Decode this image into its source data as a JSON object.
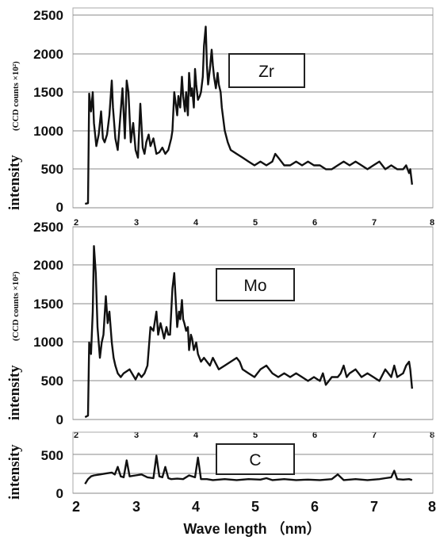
{
  "chart_data": [
    {
      "type": "line",
      "legend": "Zr",
      "ylabel": "intensity",
      "ylabel_unit": "(CCD counts  ×10²)",
      "xlim": [
        2,
        8
      ],
      "ylim": [
        0,
        2500
      ],
      "yticks": [
        "0",
        "500",
        "1000",
        "1500",
        "2000",
        "2500"
      ],
      "xticks": [
        "2",
        "3",
        "4",
        "5",
        "6",
        "7",
        "8"
      ],
      "grid": "horizontal",
      "series": [
        {
          "color": "#111111",
          "x": [
            2.15,
            2.2,
            2.22,
            2.25,
            2.28,
            2.3,
            2.34,
            2.38,
            2.42,
            2.45,
            2.48,
            2.52,
            2.56,
            2.6,
            2.62,
            2.66,
            2.7,
            2.74,
            2.78,
            2.82,
            2.85,
            2.88,
            2.92,
            2.96,
            3.0,
            3.04,
            3.08,
            3.12,
            3.15,
            3.18,
            3.22,
            3.25,
            3.3,
            3.35,
            3.4,
            3.45,
            3.5,
            3.55,
            3.6,
            3.62,
            3.65,
            3.7,
            3.72,
            3.75,
            3.78,
            3.8,
            3.83,
            3.85,
            3.88,
            3.9,
            3.93,
            3.95,
            3.98,
            4.0,
            4.02,
            4.05,
            4.08,
            4.1,
            4.13,
            4.15,
            4.18,
            4.2,
            4.22,
            4.25,
            4.28,
            4.3,
            4.32,
            4.35,
            4.38,
            4.4,
            4.43,
            4.45,
            4.5,
            4.55,
            4.6,
            4.7,
            4.8,
            4.9,
            5.0,
            5.1,
            5.2,
            5.3,
            5.35,
            5.4,
            5.45,
            5.5,
            5.6,
            5.7,
            5.8,
            5.9,
            6.0,
            6.1,
            6.2,
            6.3,
            6.4,
            6.5,
            6.6,
            6.7,
            6.8,
            6.9,
            7.0,
            7.1,
            7.2,
            7.3,
            7.4,
            7.5,
            7.55,
            7.6,
            7.62,
            7.65
          ],
          "y": [
            50,
            60,
            1480,
            1250,
            1500,
            1100,
            800,
            950,
            1250,
            900,
            850,
            950,
            1200,
            1650,
            1300,
            900,
            750,
            1150,
            1550,
            900,
            1650,
            1500,
            850,
            1100,
            750,
            650,
            1350,
            780,
            700,
            850,
            950,
            800,
            900,
            700,
            720,
            780,
            700,
            750,
            900,
            1000,
            1500,
            1200,
            1450,
            1300,
            1700,
            1450,
            1250,
            1500,
            1200,
            1750,
            1450,
            1550,
            1300,
            1800,
            1600,
            1400,
            1450,
            1500,
            1700,
            2100,
            2350,
            1850,
            1600,
            1800,
            2050,
            1850,
            1700,
            1550,
            1750,
            1600,
            1500,
            1300,
            1000,
            850,
            750,
            700,
            650,
            600,
            550,
            600,
            550,
            600,
            700,
            650,
            600,
            550,
            550,
            600,
            550,
            600,
            550,
            550,
            500,
            500,
            550,
            600,
            550,
            600,
            550,
            500,
            550,
            600,
            500,
            550,
            500,
            500,
            550,
            450,
            500,
            300
          ]
        }
      ]
    },
    {
      "type": "line",
      "legend": "Mo",
      "ylabel": "intensity",
      "ylabel_unit": "(CCD counts  ×10²)",
      "xlim": [
        2,
        8
      ],
      "ylim": [
        0,
        2500
      ],
      "yticks": [
        "0",
        "500",
        "1000",
        "1500",
        "2000",
        "2500"
      ],
      "xticks": [
        "2",
        "3",
        "4",
        "5",
        "6",
        "7",
        "8"
      ],
      "grid": "horizontal",
      "series": [
        {
          "color": "#111111",
          "x": [
            2.15,
            2.2,
            2.22,
            2.25,
            2.28,
            2.3,
            2.33,
            2.36,
            2.4,
            2.43,
            2.46,
            2.5,
            2.53,
            2.56,
            2.6,
            2.63,
            2.66,
            2.7,
            2.75,
            2.8,
            2.9,
            3.0,
            3.05,
            3.1,
            3.15,
            3.2,
            3.25,
            3.3,
            3.35,
            3.38,
            3.42,
            3.45,
            3.48,
            3.52,
            3.55,
            3.58,
            3.62,
            3.65,
            3.7,
            3.73,
            3.75,
            3.78,
            3.8,
            3.82,
            3.85,
            3.88,
            3.9,
            3.93,
            3.95,
            3.98,
            4.02,
            4.05,
            4.1,
            4.15,
            4.2,
            4.25,
            4.3,
            4.4,
            4.5,
            4.6,
            4.7,
            4.75,
            4.8,
            4.9,
            5.0,
            5.1,
            5.2,
            5.3,
            5.4,
            5.5,
            5.6,
            5.7,
            5.8,
            5.9,
            6.0,
            6.1,
            6.15,
            6.2,
            6.25,
            6.3,
            6.4,
            6.45,
            6.5,
            6.55,
            6.6,
            6.7,
            6.8,
            6.9,
            7.0,
            7.1,
            7.2,
            7.3,
            7.35,
            7.4,
            7.5,
            7.55,
            7.6,
            7.62,
            7.65
          ],
          "y": [
            30,
            50,
            1000,
            850,
            1400,
            2250,
            1900,
            1200,
            800,
            1000,
            1100,
            1600,
            1250,
            1400,
            1000,
            800,
            700,
            600,
            550,
            600,
            650,
            520,
            600,
            550,
            600,
            700,
            1200,
            1150,
            1400,
            1100,
            1250,
            1150,
            1050,
            1200,
            1100,
            1100,
            1700,
            1900,
            1200,
            1400,
            1300,
            1550,
            1300,
            1250,
            1150,
            1200,
            900,
            1100,
            1050,
            900,
            1000,
            850,
            750,
            800,
            750,
            700,
            800,
            650,
            700,
            750,
            800,
            750,
            650,
            600,
            550,
            650,
            700,
            600,
            550,
            600,
            550,
            600,
            550,
            500,
            550,
            500,
            600,
            450,
            500,
            550,
            550,
            600,
            700,
            550,
            600,
            650,
            550,
            600,
            550,
            500,
            650,
            550,
            700,
            550,
            600,
            700,
            750,
            650,
            400
          ]
        }
      ]
    },
    {
      "type": "line",
      "legend": "C",
      "ylabel": "intensity",
      "xlabel": "Wave length （nm）",
      "xlim": [
        2,
        8
      ],
      "ylim": [
        0,
        650
      ],
      "yticks": [
        "0",
        "250",
        "500"
      ],
      "xticks": [
        "2",
        "3",
        "4",
        "5",
        "6",
        "7",
        "8"
      ],
      "grid": "horizontal",
      "series": [
        {
          "color": "#111111",
          "x": [
            2.15,
            2.2,
            2.25,
            2.3,
            2.4,
            2.5,
            2.6,
            2.65,
            2.7,
            2.75,
            2.8,
            2.85,
            2.9,
            3.0,
            3.1,
            3.2,
            3.3,
            3.35,
            3.4,
            3.45,
            3.5,
            3.55,
            3.6,
            3.7,
            3.8,
            3.9,
            4.0,
            4.05,
            4.1,
            4.2,
            4.3,
            4.5,
            4.7,
            4.9,
            5.1,
            5.2,
            5.3,
            5.5,
            5.7,
            5.9,
            6.1,
            6.3,
            6.4,
            6.5,
            6.7,
            6.9,
            7.1,
            7.2,
            7.3,
            7.35,
            7.4,
            7.5,
            7.6,
            7.65
          ],
          "y": [
            100,
            150,
            180,
            190,
            200,
            210,
            220,
            200,
            280,
            180,
            170,
            350,
            180,
            190,
            200,
            170,
            160,
            400,
            180,
            170,
            280,
            160,
            150,
            155,
            150,
            190,
            170,
            380,
            150,
            150,
            140,
            150,
            140,
            150,
            145,
            160,
            140,
            150,
            140,
            145,
            140,
            150,
            200,
            140,
            150,
            140,
            150,
            160,
            170,
            240,
            150,
            145,
            150,
            140
          ]
        }
      ]
    }
  ]
}
